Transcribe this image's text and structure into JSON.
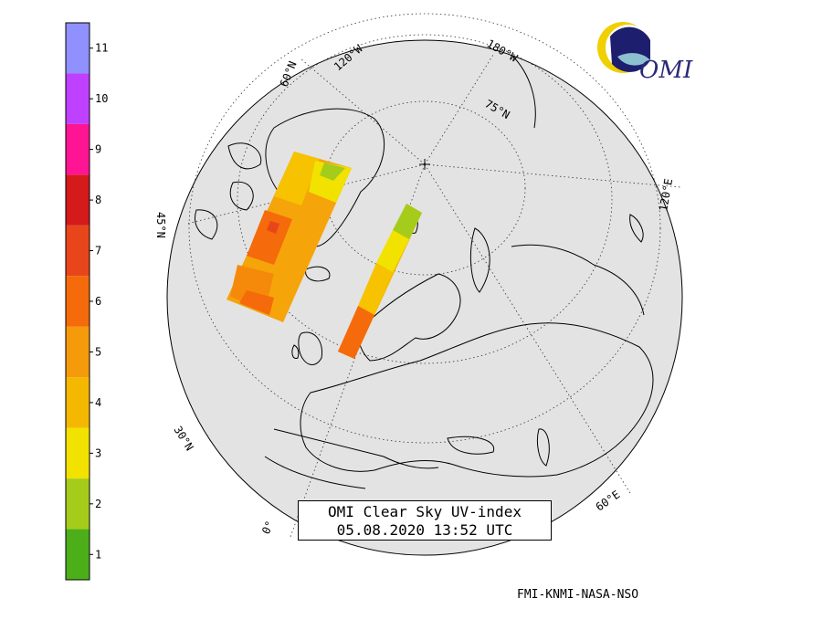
{
  "title_lines": [
    "OMI Clear Sky UV-index",
    "05.08.2020 13:52 UTC"
  ],
  "credit": "FMI-KNMI-NASA-NSO",
  "logo_text": "OMI",
  "color_scale": {
    "tick_labels": [
      "1",
      "2",
      "3",
      "4",
      "5",
      "6",
      "7",
      "8",
      "9",
      "10",
      "11"
    ],
    "colors": [
      "#4caf1a",
      "#a5cc1a",
      "#f2e200",
      "#f5b800",
      "#f59a0a",
      "#f56a0a",
      "#e8461a",
      "#d41a1a",
      "#ff1493",
      "#c040ff",
      "#9090ff"
    ]
  },
  "graticule_labels": {
    "lat_60_left": "60°N",
    "lat_45_left": "45°N",
    "lon_120w": "120°W",
    "lon_180": "180°W",
    "lat_75": "75°N",
    "lon_120e": "120°E",
    "lat_30": "30°N",
    "lon_0": "0°",
    "lon_60e": "60°E"
  }
}
